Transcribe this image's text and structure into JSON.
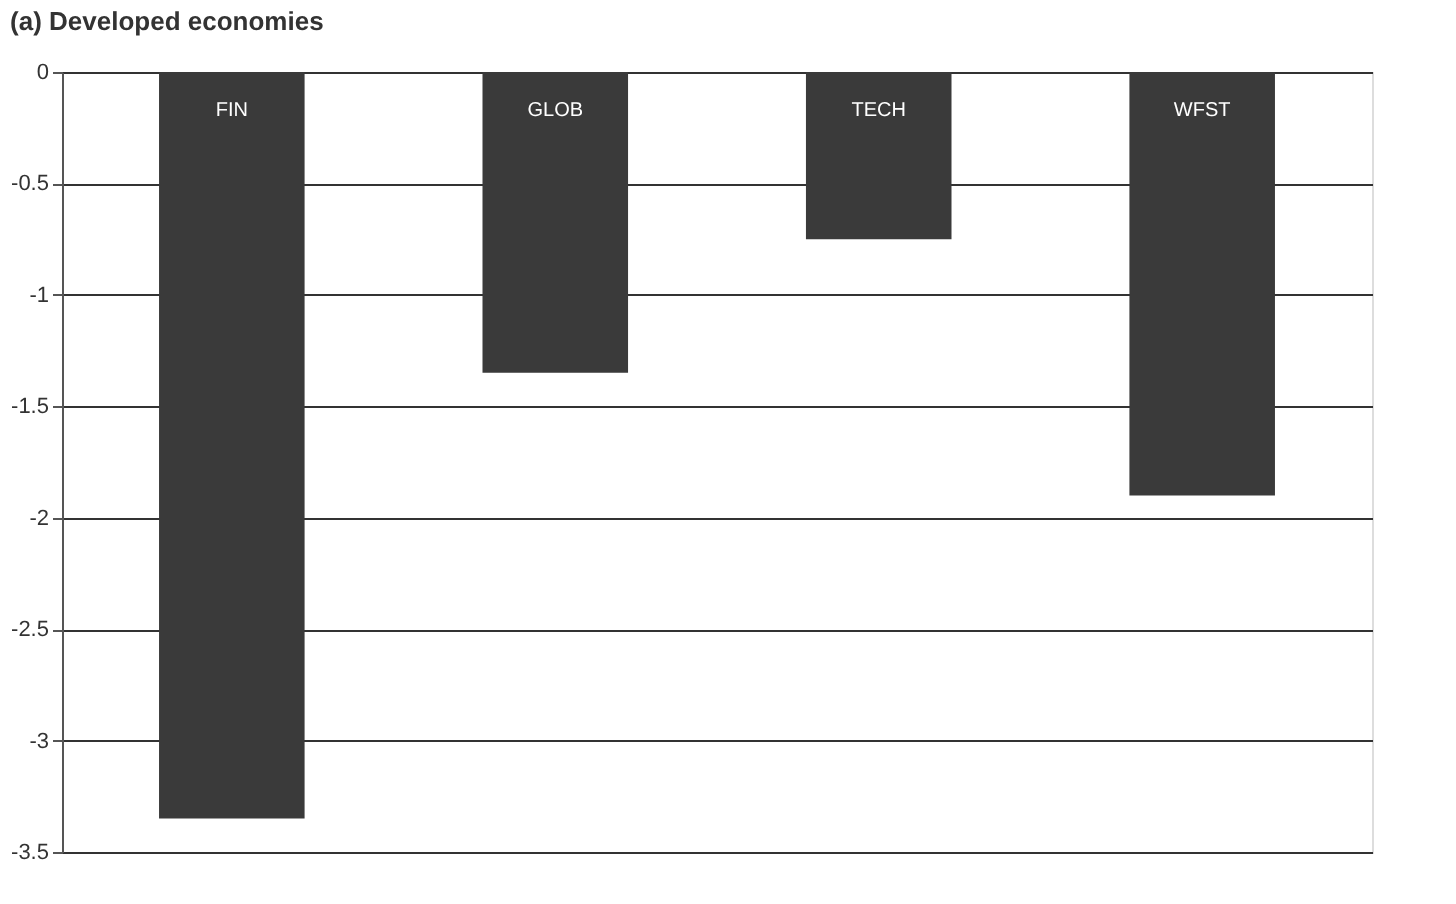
{
  "chart_data": {
    "type": "bar",
    "title": "(a) Developed economies",
    "categories": [
      "FIN",
      "GLOB",
      "TECH",
      "WFST"
    ],
    "values": [
      -3.35,
      -1.35,
      -0.75,
      -1.9
    ],
    "color": "#3a3a3a",
    "ylim": [
      -3.5,
      0
    ],
    "yticks": [
      0,
      -0.5,
      -1,
      -1.5,
      -2,
      -2.5,
      -3,
      -3.5
    ],
    "grid": "y",
    "tick_labels": "y"
  }
}
